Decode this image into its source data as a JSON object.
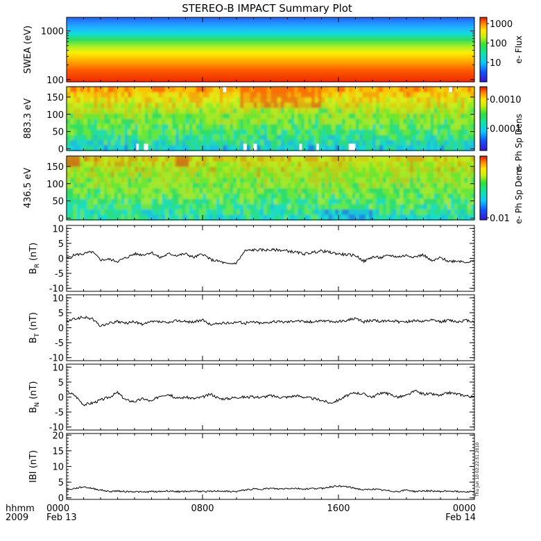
{
  "title": "STEREO-B IMPACT Summary Plot",
  "stamp": "Thu Jun 10 02:22:51 2010",
  "xaxis": {
    "row1_label": "hhmm",
    "row2_label": "2009",
    "ticks": [
      {
        "hours": 0,
        "time": "0000",
        "date": "Feb 13"
      },
      {
        "hours": 8,
        "time": "0800",
        "date": ""
      },
      {
        "hours": 16,
        "time": "1600",
        "date": ""
      },
      {
        "hours": 24,
        "time": "0000",
        "date": "Feb 14"
      }
    ],
    "range_hours": [
      0,
      24
    ]
  },
  "colors": {
    "axis": "#000000",
    "trace": "#000000",
    "gap": "#ffffff"
  },
  "panels": {
    "swea": {
      "ylabel": "SWEA (eV)",
      "yticks": [
        "1000",
        "100"
      ],
      "yrange_log": [
        90,
        1900
      ],
      "colorbar": {
        "label": "e- Flux",
        "ticks": [
          "1000",
          "100",
          "10"
        ],
        "scale": "log"
      }
    },
    "pad883": {
      "ylabel": "883.3 eV",
      "yticks": [
        "150",
        "100",
        "50",
        "0"
      ],
      "yrange": [
        -5,
        180
      ],
      "colorbar": {
        "label": "e- Ph Sp Dens",
        "ticks": [
          "0.0010",
          "0.0001"
        ],
        "scale": "log"
      }
    },
    "pad436": {
      "ylabel": "436.5 eV",
      "yticks": [
        "150",
        "100",
        "50",
        "0"
      ],
      "yrange": [
        -5,
        180
      ],
      "colorbar": {
        "label": "e- Ph Sp Dens",
        "ticks": [
          "0.01"
        ],
        "scale": "log"
      }
    }
  },
  "chart_data": [
    {
      "type": "heatmap",
      "ylabel": "SWEA (eV)",
      "y_scale": "log",
      "ylim": [
        90,
        1900
      ],
      "colorbar_label": "e- Flux",
      "description_values": "flux decreases with energy; roughly constant in time",
      "x_hours": [
        0,
        24
      ]
    },
    {
      "type": "heatmap",
      "ylabel": "883.3 eV",
      "ylim": [
        -5,
        180
      ],
      "colorbar_label": "e- Ph Sp Dens",
      "x_hours": [
        0,
        24
      ],
      "gaps_hours": [
        [
          4.1,
          4.25
        ],
        [
          4.55,
          4.8
        ],
        [
          10.4,
          10.6
        ],
        [
          11.0,
          11.2
        ],
        [
          13.7,
          13.85
        ],
        [
          14.7,
          14.85
        ],
        [
          16.6,
          17.0
        ]
      ]
    },
    {
      "type": "heatmap",
      "ylabel": "436.5 eV",
      "ylim": [
        -5,
        180
      ],
      "colorbar_label": "e- Ph Sp Dens",
      "x_hours": [
        0,
        24
      ]
    },
    {
      "type": "line",
      "ylabel": "BR (nT)",
      "ylim": [
        -11,
        11
      ],
      "yticks": [
        10,
        5,
        0,
        -5,
        -10
      ],
      "x": [
        0,
        0.5,
        1,
        1.5,
        2,
        2.5,
        3,
        3.5,
        4,
        4.5,
        5,
        5.5,
        6,
        6.5,
        7,
        7.5,
        8,
        8.5,
        9,
        9.5,
        10,
        10.5,
        11,
        11.5,
        12,
        12.5,
        13,
        13.5,
        14,
        14.5,
        15,
        15.5,
        16,
        16.5,
        17,
        17.5,
        18,
        18.5,
        19,
        19.5,
        20,
        20.5,
        21,
        21.5,
        22,
        22.5,
        23,
        23.5,
        24
      ],
      "y": [
        0,
        1.2,
        1.5,
        2.2,
        -0.5,
        -0.3,
        -1.0,
        0.2,
        1.5,
        1.2,
        2.0,
        0.2,
        1.5,
        1.0,
        1.5,
        0.3,
        1.5,
        -0.5,
        -1.0,
        -2.0,
        -1.5,
        2.5,
        2.8,
        2.8,
        2.8,
        2.8,
        2.5,
        2.0,
        1.5,
        2.0,
        2.5,
        2.0,
        1.5,
        1.2,
        1.0,
        -1.0,
        0.5,
        0.2,
        1.0,
        0.5,
        1.0,
        0.5,
        1.2,
        -1.0,
        0.2,
        -1.0,
        -0.8,
        -1.2,
        -1.0
      ]
    },
    {
      "type": "line",
      "ylabel": "BT (nT)",
      "ylim": [
        -11,
        11
      ],
      "yticks": [
        10,
        5,
        0,
        -5,
        -10
      ],
      "x": [
        0,
        0.5,
        1,
        1.5,
        2,
        2.5,
        3,
        3.5,
        4,
        4.5,
        5,
        5.5,
        6,
        6.5,
        7,
        7.5,
        8,
        8.5,
        9,
        9.5,
        10,
        10.5,
        11,
        11.5,
        12,
        12.5,
        13,
        13.5,
        14,
        14.5,
        15,
        15.5,
        16,
        16.5,
        17,
        17.5,
        18,
        18.5,
        19,
        19.5,
        20,
        20.5,
        21,
        21.5,
        22,
        22.5,
        23,
        23.5,
        24
      ],
      "y": [
        2.0,
        3.0,
        3.5,
        3.0,
        0.5,
        1.5,
        2.0,
        1.5,
        2.0,
        1.0,
        2.0,
        2.0,
        1.5,
        2.5,
        2.0,
        2.0,
        2.5,
        1.0,
        1.5,
        1.5,
        2.0,
        1.5,
        2.0,
        1.5,
        2.0,
        2.0,
        2.0,
        2.5,
        2.0,
        2.0,
        2.5,
        2.0,
        2.0,
        2.5,
        3.0,
        2.0,
        2.5,
        2.0,
        2.5,
        2.0,
        2.0,
        2.5,
        2.0,
        2.5,
        2.0,
        2.5,
        2.0,
        2.5,
        2.0
      ]
    },
    {
      "type": "line",
      "ylabel": "BN (nT)",
      "ylim": [
        -11,
        11
      ],
      "yticks": [
        10,
        5,
        0,
        -5,
        -10
      ],
      "x": [
        0,
        0.5,
        1,
        1.5,
        2,
        2.5,
        3,
        3.5,
        4,
        4.5,
        5,
        5.5,
        6,
        6.5,
        7,
        7.5,
        8,
        8.5,
        9,
        9.5,
        10,
        10.5,
        11,
        11.5,
        12,
        12.5,
        13,
        13.5,
        14,
        14.5,
        15,
        15.5,
        16,
        16.5,
        17,
        17.5,
        18,
        18.5,
        19,
        19.5,
        20,
        20.5,
        21,
        21.5,
        22,
        22.5,
        23,
        23.5,
        24
      ],
      "y": [
        2.0,
        0.5,
        -2.5,
        -2.0,
        -1.0,
        0.0,
        1.5,
        -1.0,
        -1.5,
        -0.5,
        -1.5,
        0.5,
        1.0,
        -0.5,
        0.0,
        -0.5,
        0.0,
        1.0,
        -0.5,
        -0.5,
        0.0,
        0.0,
        0.0,
        0.0,
        0.5,
        0.0,
        0.0,
        0.5,
        0.0,
        -0.5,
        -1.0,
        -2.0,
        -1.0,
        0.5,
        1.5,
        1.0,
        0.0,
        1.5,
        1.0,
        0.0,
        0.5,
        2.0,
        1.0,
        1.0,
        0.5,
        1.5,
        1.0,
        0.5,
        0.0
      ]
    },
    {
      "type": "line",
      "ylabel": "IBI (nT)",
      "ylim": [
        -0.5,
        20.5
      ],
      "yticks": [
        20,
        15,
        10,
        5,
        0
      ],
      "x": [
        0,
        0.5,
        1,
        1.5,
        2,
        2.5,
        3,
        3.5,
        4,
        4.5,
        5,
        5.5,
        6,
        6.5,
        7,
        7.5,
        8,
        8.5,
        9,
        9.5,
        10,
        10.5,
        11,
        11.5,
        12,
        12.5,
        13,
        13.5,
        14,
        14.5,
        15,
        15.5,
        16,
        16.5,
        17,
        17.5,
        18,
        18.5,
        19,
        19.5,
        20,
        20.5,
        21,
        21.5,
        22,
        22.5,
        23,
        23.5,
        24
      ],
      "y": [
        2.5,
        3.0,
        3.5,
        3.0,
        2.5,
        2.0,
        2.2,
        2.0,
        2.0,
        1.8,
        2.0,
        2.0,
        2.2,
        2.0,
        2.0,
        2.2,
        2.0,
        2.0,
        2.2,
        2.0,
        2.0,
        2.5,
        2.8,
        2.8,
        3.0,
        2.8,
        3.0,
        3.0,
        2.8,
        3.0,
        3.0,
        3.5,
        3.8,
        3.5,
        3.0,
        2.5,
        2.8,
        2.5,
        2.2,
        2.0,
        2.5,
        2.0,
        2.2,
        2.2,
        2.0,
        2.2,
        2.0,
        2.0,
        2.0
      ]
    }
  ]
}
